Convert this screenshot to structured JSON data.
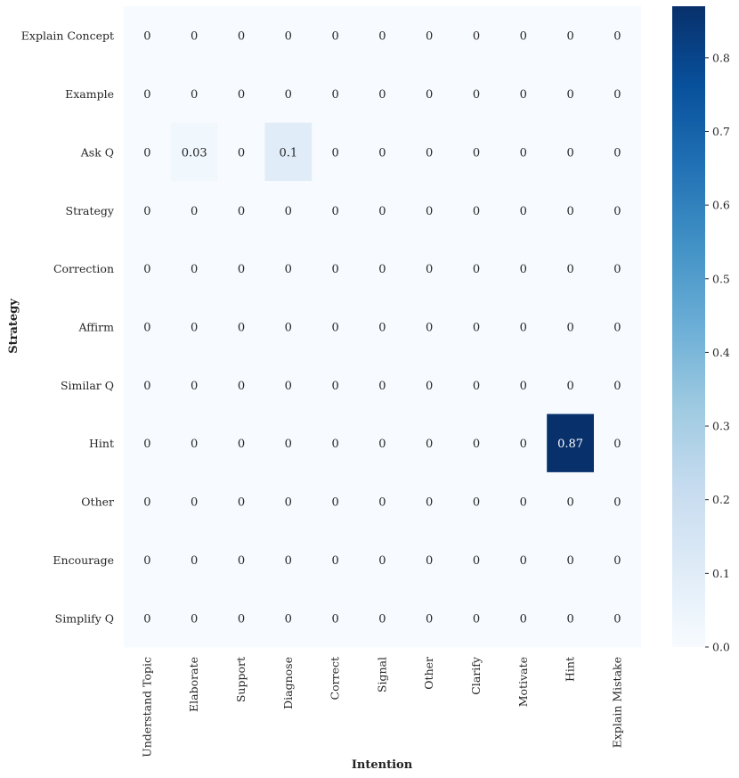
{
  "chart_data": {
    "type": "heatmap",
    "title": "",
    "xlabel": "Intention",
    "ylabel": "Strategy",
    "x_categories": [
      "Understand Topic",
      "Elaborate",
      "Support",
      "Diagnose",
      "Correct",
      "Signal",
      "Other",
      "Clarify",
      "Motivate",
      "Hint",
      "Explain Mistake"
    ],
    "y_categories": [
      "Explain Concept",
      "Example",
      "Ask Q",
      "Strategy",
      "Correction",
      "Affirm",
      "Similar Q",
      "Hint",
      "Other",
      "Encourage",
      "Simplify Q"
    ],
    "values": [
      [
        0,
        0,
        0,
        0,
        0,
        0,
        0,
        0,
        0,
        0,
        0
      ],
      [
        0,
        0,
        0,
        0,
        0,
        0,
        0,
        0,
        0,
        0,
        0
      ],
      [
        0,
        0.03,
        0,
        0.1,
        0,
        0,
        0,
        0,
        0,
        0,
        0
      ],
      [
        0,
        0,
        0,
        0,
        0,
        0,
        0,
        0,
        0,
        0,
        0
      ],
      [
        0,
        0,
        0,
        0,
        0,
        0,
        0,
        0,
        0,
        0,
        0
      ],
      [
        0,
        0,
        0,
        0,
        0,
        0,
        0,
        0,
        0,
        0,
        0
      ],
      [
        0,
        0,
        0,
        0,
        0,
        0,
        0,
        0,
        0,
        0,
        0
      ],
      [
        0,
        0,
        0,
        0,
        0,
        0,
        0,
        0,
        0,
        0.87,
        0
      ],
      [
        0,
        0,
        0,
        0,
        0,
        0,
        0,
        0,
        0,
        0,
        0
      ],
      [
        0,
        0,
        0,
        0,
        0,
        0,
        0,
        0,
        0,
        0,
        0
      ],
      [
        0,
        0,
        0,
        0,
        0,
        0,
        0,
        0,
        0,
        0,
        0
      ]
    ],
    "annotations": [
      [
        "0",
        "0",
        "0",
        "0",
        "0",
        "0",
        "0",
        "0",
        "0",
        "0",
        "0"
      ],
      [
        "0",
        "0",
        "0",
        "0",
        "0",
        "0",
        "0",
        "0",
        "0",
        "0",
        "0"
      ],
      [
        "0",
        "0.03",
        "0",
        "0.1",
        "0",
        "0",
        "0",
        "0",
        "0",
        "0",
        "0"
      ],
      [
        "0",
        "0",
        "0",
        "0",
        "0",
        "0",
        "0",
        "0",
        "0",
        "0",
        "0"
      ],
      [
        "0",
        "0",
        "0",
        "0",
        "0",
        "0",
        "0",
        "0",
        "0",
        "0",
        "0"
      ],
      [
        "0",
        "0",
        "0",
        "0",
        "0",
        "0",
        "0",
        "0",
        "0",
        "0",
        "0"
      ],
      [
        "0",
        "0",
        "0",
        "0",
        "0",
        "0",
        "0",
        "0",
        "0",
        "0",
        "0"
      ],
      [
        "0",
        "0",
        "0",
        "0",
        "0",
        "0",
        "0",
        "0",
        "0",
        "0.87",
        "0"
      ],
      [
        "0",
        "0",
        "0",
        "0",
        "0",
        "0",
        "0",
        "0",
        "0",
        "0",
        "0"
      ],
      [
        "0",
        "0",
        "0",
        "0",
        "0",
        "0",
        "0",
        "0",
        "0",
        "0",
        "0"
      ],
      [
        "0",
        "0",
        "0",
        "0",
        "0",
        "0",
        "0",
        "0",
        "0",
        "0",
        "0"
      ]
    ],
    "colormap": "Blues",
    "color_range": [
      0,
      0.87
    ],
    "colorbar_ticks": [
      0.0,
      0.1,
      0.2,
      0.3,
      0.4,
      0.5,
      0.6,
      0.7,
      0.8
    ],
    "colorbar_tick_labels": [
      "0.0",
      "0.1",
      "0.2",
      "0.3",
      "0.4",
      "0.5",
      "0.6",
      "0.7",
      "0.8"
    ],
    "grid": false
  }
}
